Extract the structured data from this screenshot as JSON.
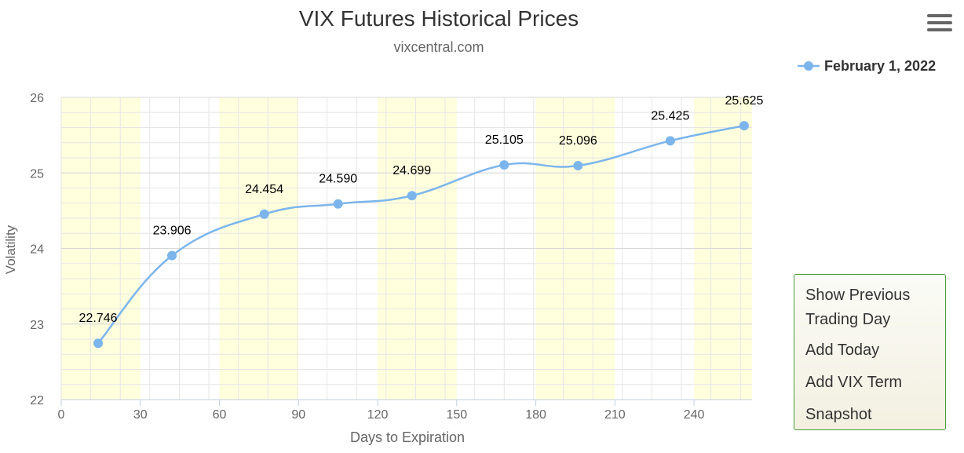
{
  "header": {
    "title": "VIX Futures Historical Prices",
    "subtitle": "vixcentral.com",
    "menu_icon": "hamburger-menu-icon"
  },
  "legend": {
    "label": "February 1, 2022",
    "color": "#7cb5ec"
  },
  "context_menu": {
    "items": [
      "Show Previous Trading Day",
      "Add Today",
      "Add VIX Term",
      "Snapshot"
    ]
  },
  "colors": {
    "series": "#7cb5ec",
    "band": "#ffffdd",
    "grid": "#e6e6e6"
  },
  "chart_data": {
    "type": "line",
    "title": "VIX Futures Historical Prices",
    "subtitle": "vixcentral.com",
    "xlabel": "Days to Expiration",
    "ylabel": "Volatility",
    "xlim": [
      0,
      262
    ],
    "ylim": [
      22,
      26
    ],
    "xticks": [
      0,
      30,
      60,
      90,
      120,
      150,
      180,
      210,
      240
    ],
    "yticks": [
      22,
      23,
      24,
      25,
      26
    ],
    "bands": [
      [
        0,
        30
      ],
      [
        60,
        90
      ],
      [
        120,
        150
      ],
      [
        180,
        210
      ],
      [
        240,
        262
      ]
    ],
    "grid": true,
    "legend_position": "top-right",
    "series": [
      {
        "name": "February 1, 2022",
        "x": [
          14,
          42,
          77,
          105,
          133,
          168,
          196,
          231,
          259
        ],
        "values": [
          22.746,
          23.906,
          24.454,
          24.59,
          24.699,
          25.105,
          25.096,
          25.425,
          25.625
        ],
        "labels": [
          "22.746",
          "23.906",
          "24.454",
          "24.590",
          "24.699",
          "25.105",
          "25.096",
          "25.425",
          "25.625"
        ]
      }
    ]
  }
}
